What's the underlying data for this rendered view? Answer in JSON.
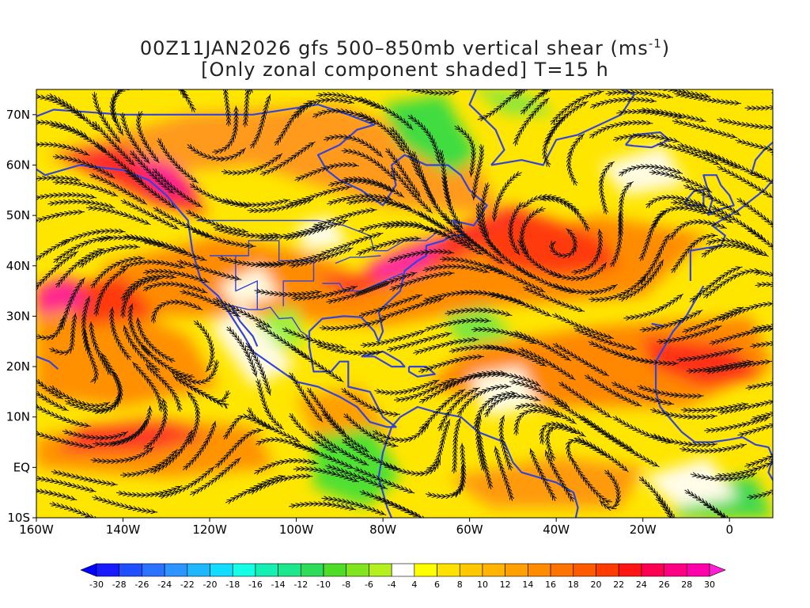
{
  "title": {
    "line1_prefix": "00Z11JAN2026 gfs 500–850mb vertical shear (ms",
    "line1_sup": "-1",
    "line1_suffix": ")",
    "line2": "[Only zonal component shaded] T=15 h"
  },
  "map": {
    "projection": "lat-lon",
    "lon_range": [
      -160,
      10
    ],
    "lat_range": [
      -10,
      75
    ],
    "lon_ticks": [
      {
        "value": -160,
        "label": "160W"
      },
      {
        "value": -140,
        "label": "140W"
      },
      {
        "value": -120,
        "label": "120W"
      },
      {
        "value": -100,
        "label": "100W"
      },
      {
        "value": -80,
        "label": "80W"
      },
      {
        "value": -60,
        "label": "60W"
      },
      {
        "value": -40,
        "label": "40W"
      },
      {
        "value": -20,
        "label": "20W"
      },
      {
        "value": 0,
        "label": "0"
      }
    ],
    "lat_ticks": [
      {
        "value": 70,
        "label": "70N"
      },
      {
        "value": 60,
        "label": "60N"
      },
      {
        "value": 50,
        "label": "50N"
      },
      {
        "value": 40,
        "label": "40N"
      },
      {
        "value": 30,
        "label": "30N"
      },
      {
        "value": 20,
        "label": "20N"
      },
      {
        "value": 10,
        "label": "10N"
      },
      {
        "value": 0,
        "label": "EQ"
      },
      {
        "value": -10,
        "label": "10S"
      }
    ],
    "coastline_color": "#3344dd",
    "streamline_color": "#111111"
  },
  "colorbar": {
    "labels": [
      "-30",
      "-28",
      "-26",
      "-24",
      "-22",
      "-20",
      "-18",
      "-16",
      "-14",
      "-12",
      "-10",
      "-8",
      "-6",
      "-4",
      "4",
      "6",
      "8",
      "10",
      "12",
      "14",
      "16",
      "18",
      "20",
      "22",
      "24",
      "26",
      "28",
      "30"
    ],
    "colors": [
      "#1a1aff",
      "#1f4fff",
      "#2a72ff",
      "#2e95ff",
      "#1fb8ff",
      "#14dcff",
      "#14ffe6",
      "#14f0b4",
      "#1ee68c",
      "#2ddc5a",
      "#50dc28",
      "#82e61e",
      "#b4f01e",
      "#ffffff",
      "#ffff00",
      "#ffe100",
      "#ffc800",
      "#ffb400",
      "#ffa000",
      "#ff8c00",
      "#ff7300",
      "#ff5a00",
      "#ff3c00",
      "#ff1414",
      "#ff0050",
      "#ff0082",
      "#ff00aa"
    ],
    "under_color": "#0000ff",
    "over_color": "#ff1ed2"
  }
}
